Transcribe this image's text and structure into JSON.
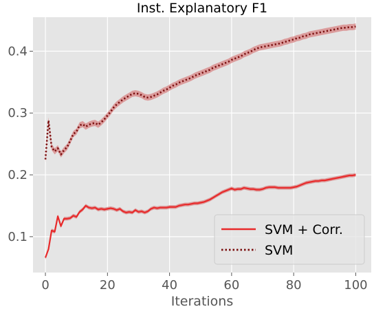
{
  "chart_data": {
    "type": "line",
    "title": "Inst. Explanatory F1",
    "xlabel": "Iterations",
    "ylabel": "",
    "xlim": [
      -4,
      105
    ],
    "ylim": [
      0.042,
      0.455
    ],
    "xticks": [
      0,
      20,
      40,
      60,
      80,
      100
    ],
    "yticks": [
      0.1,
      0.2,
      0.3,
      0.4
    ],
    "xtick_labels": [
      "0",
      "20",
      "40",
      "60",
      "80",
      "100"
    ],
    "ytick_labels": [
      "0.1",
      "0.2",
      "0.3",
      "0.4"
    ],
    "grid": true,
    "legend_position": "lower-right",
    "colors": {
      "background": "#e5e5e5",
      "grid": "#ffffff",
      "series_line": "#e8292a",
      "series_dotted": "#7a0e0e",
      "band": "#d98f8f"
    },
    "series": [
      {
        "name": "SVM + Corr.",
        "style": "solid",
        "band": 0.003,
        "x": [
          0,
          1,
          2,
          3,
          4,
          5,
          6,
          7,
          8,
          9,
          10,
          11,
          12,
          13,
          14,
          15,
          16,
          17,
          18,
          19,
          20,
          21,
          22,
          23,
          24,
          25,
          26,
          27,
          28,
          29,
          30,
          31,
          32,
          33,
          34,
          35,
          36,
          37,
          38,
          39,
          40,
          41,
          42,
          43,
          44,
          45,
          46,
          47,
          48,
          49,
          50,
          51,
          52,
          53,
          54,
          55,
          56,
          57,
          58,
          59,
          60,
          61,
          62,
          63,
          64,
          65,
          66,
          67,
          68,
          69,
          70,
          71,
          72,
          73,
          74,
          75,
          76,
          77,
          78,
          79,
          80,
          81,
          82,
          83,
          84,
          85,
          86,
          87,
          88,
          89,
          90,
          91,
          92,
          93,
          94,
          95,
          96,
          97,
          98,
          99,
          100
        ],
        "values": [
          0.066,
          0.08,
          0.11,
          0.108,
          0.133,
          0.117,
          0.129,
          0.129,
          0.13,
          0.134,
          0.132,
          0.14,
          0.144,
          0.15,
          0.147,
          0.146,
          0.147,
          0.144,
          0.145,
          0.144,
          0.145,
          0.146,
          0.145,
          0.143,
          0.145,
          0.141,
          0.139,
          0.14,
          0.139,
          0.143,
          0.14,
          0.141,
          0.139,
          0.141,
          0.145,
          0.147,
          0.146,
          0.147,
          0.147,
          0.147,
          0.148,
          0.148,
          0.148,
          0.15,
          0.151,
          0.152,
          0.152,
          0.153,
          0.154,
          0.154,
          0.155,
          0.156,
          0.158,
          0.16,
          0.163,
          0.166,
          0.169,
          0.172,
          0.174,
          0.176,
          0.178,
          0.176,
          0.177,
          0.177,
          0.179,
          0.178,
          0.177,
          0.177,
          0.176,
          0.176,
          0.177,
          0.179,
          0.18,
          0.18,
          0.18,
          0.179,
          0.179,
          0.179,
          0.179,
          0.179,
          0.18,
          0.181,
          0.183,
          0.185,
          0.187,
          0.188,
          0.189,
          0.19,
          0.19,
          0.191,
          0.191,
          0.192,
          0.193,
          0.194,
          0.195,
          0.196,
          0.197,
          0.198,
          0.199,
          0.199,
          0.2
        ]
      },
      {
        "name": "SVM",
        "style": "dotted",
        "band": 0.005,
        "x": [
          0,
          1,
          2,
          3,
          4,
          5,
          6,
          7,
          8,
          9,
          10,
          11,
          12,
          13,
          14,
          15,
          16,
          17,
          18,
          19,
          20,
          21,
          22,
          23,
          24,
          25,
          26,
          27,
          28,
          29,
          30,
          31,
          32,
          33,
          34,
          35,
          36,
          37,
          38,
          39,
          40,
          41,
          42,
          43,
          44,
          45,
          46,
          47,
          48,
          49,
          50,
          51,
          52,
          53,
          54,
          55,
          56,
          57,
          58,
          59,
          60,
          61,
          62,
          63,
          64,
          65,
          66,
          67,
          68,
          69,
          70,
          71,
          72,
          73,
          74,
          75,
          76,
          77,
          78,
          79,
          80,
          81,
          82,
          83,
          84,
          85,
          86,
          87,
          88,
          89,
          90,
          91,
          92,
          93,
          94,
          95,
          96,
          97,
          98,
          99,
          100
        ],
        "values": [
          0.225,
          0.288,
          0.245,
          0.238,
          0.243,
          0.233,
          0.24,
          0.245,
          0.255,
          0.266,
          0.27,
          0.28,
          0.282,
          0.278,
          0.281,
          0.283,
          0.284,
          0.281,
          0.285,
          0.29,
          0.296,
          0.302,
          0.309,
          0.314,
          0.318,
          0.322,
          0.325,
          0.328,
          0.331,
          0.332,
          0.331,
          0.329,
          0.326,
          0.325,
          0.326,
          0.328,
          0.33,
          0.333,
          0.336,
          0.338,
          0.341,
          0.344,
          0.346,
          0.349,
          0.351,
          0.353,
          0.355,
          0.357,
          0.36,
          0.362,
          0.364,
          0.366,
          0.368,
          0.37,
          0.373,
          0.375,
          0.377,
          0.379,
          0.381,
          0.383,
          0.386,
          0.388,
          0.39,
          0.392,
          0.395,
          0.397,
          0.399,
          0.402,
          0.404,
          0.406,
          0.407,
          0.408,
          0.409,
          0.41,
          0.411,
          0.412,
          0.413,
          0.415,
          0.416,
          0.418,
          0.419,
          0.421,
          0.422,
          0.424,
          0.425,
          0.427,
          0.428,
          0.429,
          0.43,
          0.431,
          0.432,
          0.433,
          0.434,
          0.435,
          0.436,
          0.437,
          0.438,
          0.438,
          0.439,
          0.439,
          0.44
        ]
      }
    ]
  }
}
